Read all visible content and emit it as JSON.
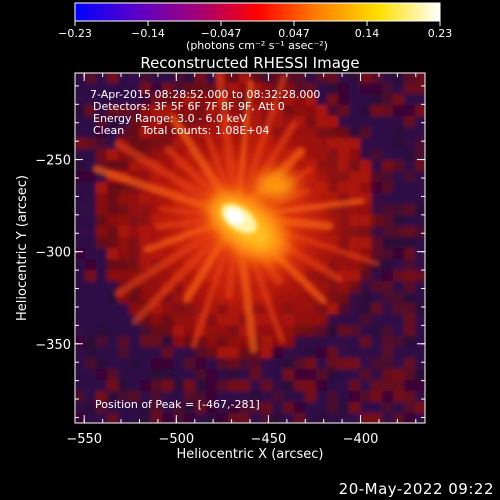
{
  "colorbar": {
    "ticks": [
      "−0.23",
      "−0.14",
      "−0.047",
      "0.047",
      "0.14",
      "0.23"
    ],
    "units_label": "(photons cm⁻² s⁻¹ asec⁻²)",
    "min": -0.23,
    "max": 0.23,
    "palette": [
      "#0000ff",
      "#5a00c8",
      "#a0007a",
      "#ff0000",
      "#ff8000",
      "#ffe000",
      "#ffffff"
    ]
  },
  "chart_data": {
    "type": "heatmap",
    "title": "Reconstructed RHESSI Image",
    "xlabel": "Heliocentric X (arcsec)",
    "ylabel": "Heliocentric Y (arcsec)",
    "xlim": [
      -555,
      -365
    ],
    "ylim": [
      -393,
      -203
    ],
    "xticks": [
      -550,
      -500,
      -450,
      -400
    ],
    "yticks": [
      -250,
      -300,
      -350
    ],
    "xtick_labels": [
      "−550",
      "−500",
      "−450",
      "−400"
    ],
    "ytick_labels": [
      "−250",
      "−300",
      "−350"
    ],
    "annotations": [
      "7-Apr-2015 08:28:52.000 to 08:32:28.000",
      "Detectors: 3F 5F 6F 7F 8F 9F, Att 0",
      "Energy Range: 3.0 - 6.0 keV",
      "Clean     Total counts: 1.08E+04"
    ],
    "peak_label": "Position of Peak = [-467,-281]",
    "peak": [
      -467,
      -281
    ],
    "secondary_source": [
      -446,
      -264
    ]
  },
  "footer": {
    "date": "20-May-2022 09:22"
  }
}
